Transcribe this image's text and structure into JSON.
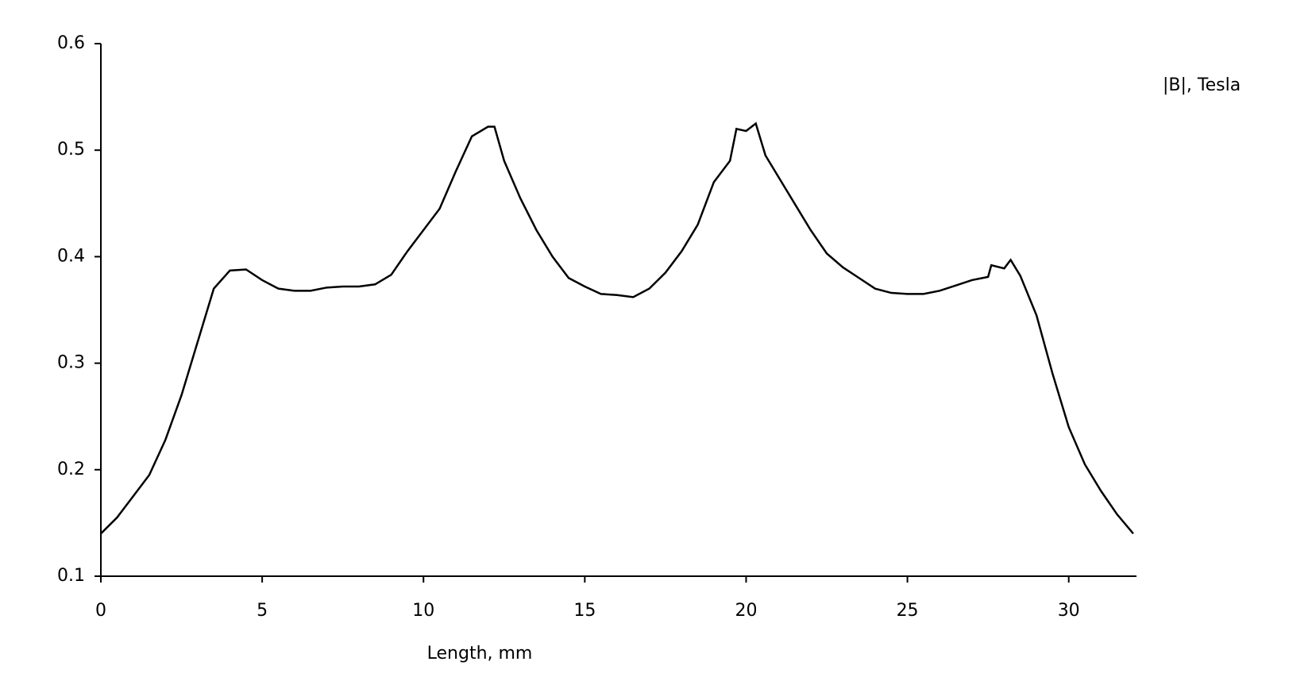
{
  "chart_data": {
    "type": "line",
    "y_label": "|B|, Tesla",
    "x_label": "Length, mm",
    "x": [
      0,
      0.5,
      1,
      1.5,
      2,
      2.5,
      3,
      3.5,
      4,
      4.5,
      5,
      5.5,
      6,
      6.5,
      7,
      7.5,
      8,
      8.5,
      9,
      9.5,
      10,
      10.5,
      11,
      11.5,
      12,
      12.2,
      12.5,
      13,
      13.5,
      14,
      14.5,
      15,
      15.5,
      16,
      16.5,
      17,
      17.5,
      18,
      18.5,
      19,
      19.5,
      19.7,
      20,
      20.3,
      20.6,
      21,
      21.5,
      22,
      22.5,
      23,
      23.5,
      24,
      24.5,
      25,
      25.5,
      26,
      26.5,
      27,
      27.5,
      27.6,
      28,
      28.2,
      28.5,
      29,
      29.5,
      30,
      30.5,
      31,
      31.5,
      32
    ],
    "series": [
      {
        "color": "#000000",
        "values": [
          0.14,
          0.155,
          0.175,
          0.195,
          0.228,
          0.27,
          0.32,
          0.37,
          0.387,
          0.388,
          0.378,
          0.37,
          0.368,
          0.368,
          0.371,
          0.372,
          0.372,
          0.374,
          0.383,
          0.405,
          0.425,
          0.445,
          0.48,
          0.513,
          0.522,
          0.522,
          0.49,
          0.455,
          0.425,
          0.4,
          0.38,
          0.372,
          0.365,
          0.364,
          0.362,
          0.37,
          0.385,
          0.405,
          0.43,
          0.47,
          0.49,
          0.52,
          0.518,
          0.525,
          0.495,
          0.475,
          0.45,
          0.425,
          0.403,
          0.39,
          0.38,
          0.37,
          0.366,
          0.365,
          0.365,
          0.368,
          0.373,
          0.378,
          0.381,
          0.392,
          0.389,
          0.397,
          0.382,
          0.345,
          0.29,
          0.24,
          0.205,
          0.18,
          0.158,
          0.14
        ]
      }
    ],
    "xlim": [
      0,
      32.1
    ],
    "xticks": [
      0,
      5,
      10,
      15,
      20,
      25,
      30
    ],
    "ylim": [
      0.1,
      0.6
    ],
    "yticks": [
      0.1,
      0.2,
      0.3,
      0.4,
      0.5,
      0.6
    ]
  }
}
